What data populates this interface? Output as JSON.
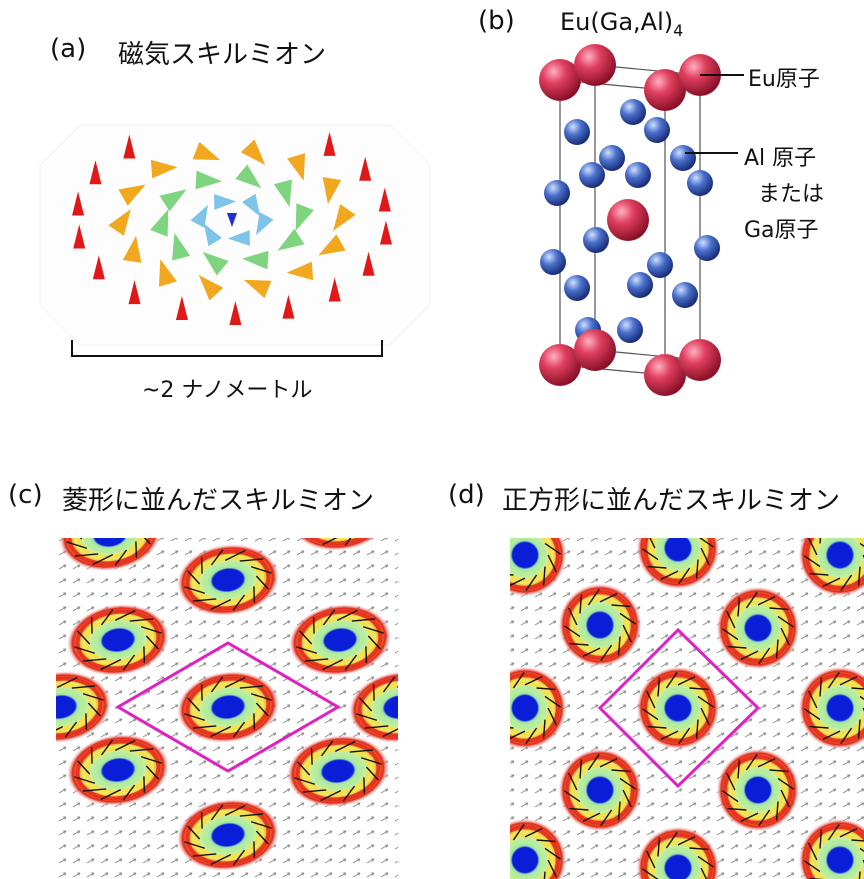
{
  "panel_a": {
    "label": "(a)",
    "title": "磁気スキルミオン",
    "scale": "~2 ナノメートル"
  },
  "panel_b": {
    "label": "(b)",
    "formula_main": "Eu(Ga,Al)",
    "formula_sub": "4",
    "eu_label": "Eu原子",
    "al_line1": "Al 原子",
    "al_line2": "または",
    "al_line3": "Ga原子"
  },
  "panel_c": {
    "label": "(c)",
    "title": "菱形に並んだスキルミオン"
  },
  "panel_d": {
    "label": "(d)",
    "title": "正方形に並んだスキルミオン"
  },
  "colors": {
    "eu": "#d63352",
    "al": "#3a5fbf",
    "frame_outline": "#e020c0",
    "core": "#0a1ed8",
    "ring_green": "#b7ec9a",
    "ring_yellow": "#f4e04a",
    "ring_red": "#e4261e"
  }
}
